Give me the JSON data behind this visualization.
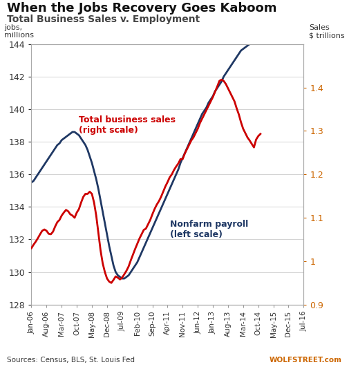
{
  "title1": "When the Jobs Recovery Goes Kaboom",
  "title2": "Total Business Sales v. Employment",
  "left_label_line1": "jobs,",
  "left_label_line2": "millions",
  "right_label_line1": "Sales",
  "right_label_line2": "$ trillions",
  "left_ylim": [
    128,
    144
  ],
  "right_ylim": [
    0.9,
    1.5
  ],
  "left_yticks": [
    128,
    130,
    132,
    134,
    136,
    138,
    140,
    142,
    144
  ],
  "right_yticks": [
    0.9,
    1.0,
    1.1,
    1.2,
    1.3,
    1.4
  ],
  "source_text": "Sources: Census, BLS, St. Louis Fed",
  "watermark": "WOLFSTREET.com",
  "nonfarm_label": "Nonfarm payroll\n(left scale)",
  "sales_label": "Total business sales\n(right scale)",
  "nonfarm_color": "#1f3864",
  "sales_color": "#cc0000",
  "background_color": "#ffffff",
  "nonfarm_y": [
    135.5,
    135.6,
    135.8,
    136.0,
    136.2,
    136.4,
    136.6,
    136.8,
    137.0,
    137.2,
    137.4,
    137.6,
    137.8,
    137.9,
    138.1,
    138.2,
    138.3,
    138.4,
    138.5,
    138.6,
    138.6,
    138.5,
    138.4,
    138.2,
    138.0,
    137.8,
    137.5,
    137.1,
    136.7,
    136.2,
    135.7,
    135.1,
    134.4,
    133.7,
    133.0,
    132.3,
    131.6,
    131.0,
    130.4,
    130.0,
    129.8,
    129.7,
    129.6,
    129.6,
    129.7,
    129.8,
    130.0,
    130.2,
    130.4,
    130.6,
    130.9,
    131.2,
    131.5,
    131.8,
    132.1,
    132.4,
    132.7,
    133.0,
    133.3,
    133.6,
    133.9,
    134.2,
    134.5,
    134.8,
    135.1,
    135.4,
    135.7,
    136.0,
    136.3,
    136.7,
    137.0,
    137.3,
    137.6,
    137.9,
    138.2,
    138.5,
    138.8,
    139.1,
    139.4,
    139.7,
    139.9,
    140.1,
    140.4,
    140.6,
    140.8,
    141.1,
    141.3,
    141.5,
    141.7,
    142.0,
    142.2,
    142.4,
    142.6,
    142.8,
    143.0,
    143.2,
    143.4,
    143.6,
    143.7,
    143.8,
    143.9,
    144.0,
    144.1,
    144.2,
    144.3,
    144.4,
    144.5
  ],
  "sales_y": [
    1.03,
    1.038,
    1.045,
    1.053,
    1.062,
    1.07,
    1.073,
    1.07,
    1.063,
    1.062,
    1.068,
    1.08,
    1.09,
    1.095,
    1.105,
    1.112,
    1.118,
    1.115,
    1.108,
    1.105,
    1.1,
    1.112,
    1.12,
    1.135,
    1.148,
    1.155,
    1.155,
    1.16,
    1.155,
    1.135,
    1.105,
    1.065,
    1.025,
    0.995,
    0.975,
    0.96,
    0.953,
    0.95,
    0.957,
    0.965,
    0.962,
    0.958,
    0.962,
    0.97,
    0.978,
    0.988,
    1.002,
    1.015,
    1.028,
    1.04,
    1.052,
    1.062,
    1.072,
    1.075,
    1.085,
    1.095,
    1.108,
    1.12,
    1.13,
    1.138,
    1.148,
    1.16,
    1.172,
    1.182,
    1.193,
    1.2,
    1.21,
    1.218,
    1.225,
    1.235,
    1.235,
    1.248,
    1.258,
    1.268,
    1.278,
    1.285,
    1.295,
    1.305,
    1.318,
    1.328,
    1.338,
    1.348,
    1.358,
    1.368,
    1.378,
    1.39,
    1.402,
    1.415,
    1.418,
    1.415,
    1.408,
    1.398,
    1.388,
    1.378,
    1.368,
    1.352,
    1.338,
    1.32,
    1.305,
    1.295,
    1.285,
    1.278,
    1.27,
    1.262,
    1.28,
    1.288,
    1.293
  ],
  "xtick_positions": [
    0,
    7,
    14,
    21,
    28,
    35,
    42,
    49,
    56,
    63,
    70,
    77,
    84,
    91,
    98,
    105,
    112,
    119,
    126
  ],
  "xtick_labels": [
    "Jan-06",
    "Aug-06",
    "Mar-07",
    "Oct-07",
    "May-08",
    "Dec-08",
    "Jul-09",
    "Feb-10",
    "Sep-10",
    "Apr-11",
    "Nov-11",
    "Jun-12",
    "Jan-13",
    "Aug-13",
    "Mar-14",
    "Oct-14",
    "May-15",
    "Dec-15",
    "Jul-16"
  ]
}
